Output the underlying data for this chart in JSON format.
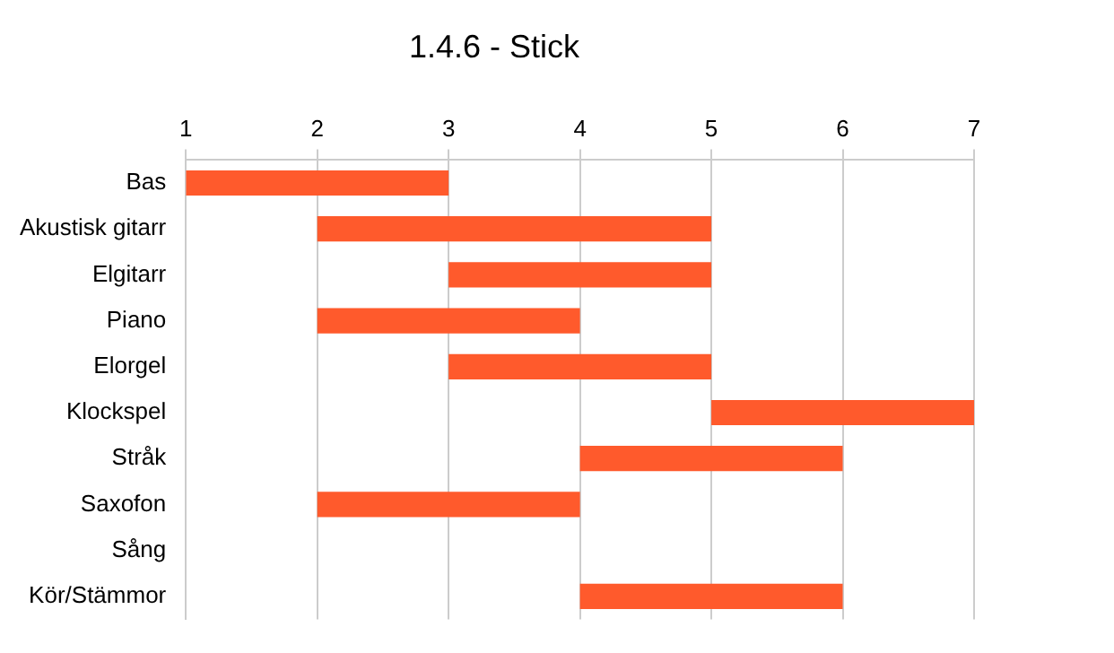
{
  "chart_data": {
    "type": "bar",
    "title": "1.4.6 - Stick",
    "orientation": "horizontal",
    "categories": [
      "Bas",
      "Akustisk gitarr",
      "Elgitarr",
      "Piano",
      "Elorgel",
      "Klockspel",
      "Stråk",
      "Saxofon",
      "Sång",
      "Kör/Stämmor"
    ],
    "base": [
      1,
      2,
      3,
      2,
      3,
      5,
      4,
      2,
      null,
      4
    ],
    "values": [
      2,
      3,
      2,
      2,
      2,
      2,
      2,
      2,
      null,
      2
    ],
    "color": "#ff5a2c",
    "xlim": [
      1,
      7
    ],
    "xticks": [
      1,
      2,
      3,
      4,
      5,
      6,
      7
    ],
    "grid": "x",
    "legend": false
  }
}
